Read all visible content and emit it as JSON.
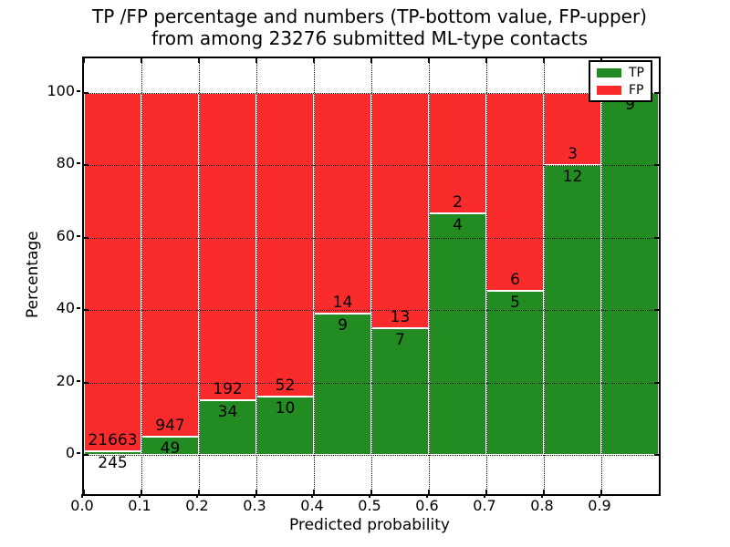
{
  "title": {
    "line1": "TP /FP percentage and numbers (TP-bottom value, FP-upper)",
    "line2": "from among 23276 submitted ML-type contacts"
  },
  "axes": {
    "x_label": "Predicted probability",
    "y_label": "Percentage",
    "x_ticks": [
      "0.0",
      "0.1",
      "0.2",
      "0.3",
      "0.4",
      "0.5",
      "0.6",
      "0.7",
      "0.8",
      "0.9"
    ],
    "y_ticks": [
      "0",
      "20",
      "40",
      "60",
      "80",
      "100"
    ]
  },
  "legend": {
    "items": [
      {
        "label": "TP",
        "color": "#228B22"
      },
      {
        "label": "FP",
        "color": "#FA2B2B"
      }
    ]
  },
  "colors": {
    "tp": "#228B22",
    "fp": "#FA2B2B",
    "grid": "#000000",
    "frame": "#000000",
    "bar_edge": "#ffffff",
    "background": "#ffffff"
  },
  "chart_data": {
    "type": "bar",
    "stacked": true,
    "unit": "percent",
    "title": "TP /FP percentage and numbers (TP-bottom value, FP-upper) from among 23276 submitted ML-type contacts",
    "xlabel": "Predicted probability",
    "ylabel": "Percentage",
    "total_contacts": 23276,
    "x_bin_start": [
      0.0,
      0.1,
      0.2,
      0.3,
      0.4,
      0.5,
      0.6,
      0.7,
      0.8,
      0.9
    ],
    "x_bin_width": 0.1,
    "xlim": [
      0.0,
      1.0
    ],
    "ylim": [
      -10.8,
      109.6
    ],
    "grid": "dotted",
    "legend_position": "upper right",
    "series": [
      {
        "name": "TP",
        "color": "#228B22",
        "counts": [
          245,
          49,
          34,
          10,
          9,
          7,
          4,
          5,
          12,
          9
        ]
      },
      {
        "name": "FP",
        "color": "#FA2B2B",
        "counts": [
          21663,
          947,
          192,
          52,
          14,
          13,
          2,
          6,
          3,
          0
        ]
      }
    ],
    "tp_percent": [
      1.12,
      4.92,
      15.04,
      16.13,
      39.13,
      35.0,
      66.67,
      45.45,
      80.0,
      100.0
    ],
    "bar_labels": [
      {
        "tp": "245",
        "fp": "21663"
      },
      {
        "tp": "49",
        "fp": "947"
      },
      {
        "tp": "34",
        "fp": "192"
      },
      {
        "tp": "10",
        "fp": "52"
      },
      {
        "tp": "9",
        "fp": "14"
      },
      {
        "tp": "7",
        "fp": "13"
      },
      {
        "tp": "4",
        "fp": "2"
      },
      {
        "tp": "5",
        "fp": "6"
      },
      {
        "tp": "12",
        "fp": "3"
      },
      {
        "tp": "9",
        "fp": ""
      }
    ]
  }
}
